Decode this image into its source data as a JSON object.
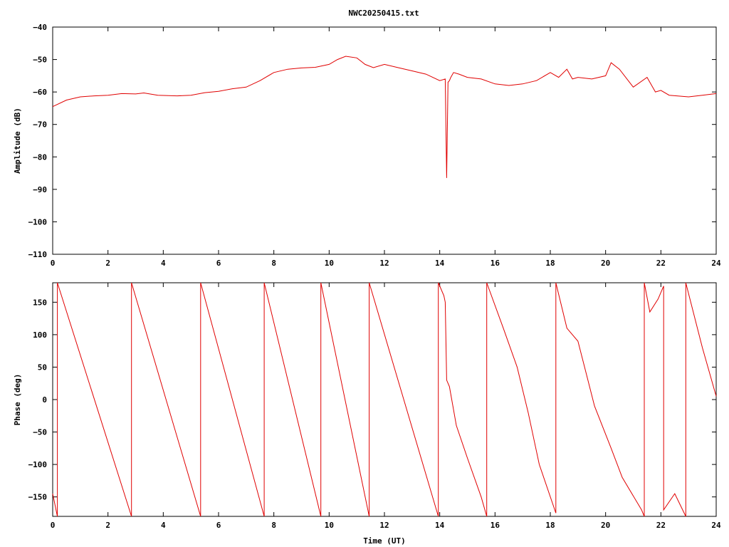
{
  "title": "NWC20250415.txt",
  "chart_data": [
    {
      "type": "line",
      "ylabel": "Amplitude (dB)",
      "xlabel": "",
      "xlim": [
        0,
        24
      ],
      "ylim": [
        -110,
        -40
      ],
      "xticks": [
        0,
        2,
        4,
        6,
        8,
        10,
        12,
        14,
        16,
        18,
        20,
        22,
        24
      ],
      "yticks": [
        -110,
        -100,
        -90,
        -80,
        -70,
        -60,
        -50,
        -40
      ],
      "xtick_labels": [
        "0",
        "2",
        "4",
        "6",
        "8",
        "10",
        "12",
        "14",
        "16",
        "18",
        "20",
        "22",
        "24"
      ],
      "ytick_labels": [
        "−110",
        "−100",
        "−90",
        "−80",
        "−70",
        "−60",
        "−50",
        "−40"
      ],
      "series_color": "#e00000",
      "series": [
        {
          "x": [
            0,
            0.5,
            1,
            1.5,
            2,
            2.5,
            3,
            3.3,
            3.8,
            4.5,
            5,
            5.5,
            6,
            6.5,
            7,
            7.5,
            8,
            8.5,
            9,
            9.5,
            10,
            10.3,
            10.6,
            11,
            11.3,
            11.6,
            12,
            12.5,
            13,
            13.5,
            14,
            14.2,
            14.25,
            14.3,
            14.35,
            14.4,
            14.5,
            14.7,
            15,
            15.5,
            16,
            16.5,
            17,
            17.5,
            18,
            18.3,
            18.6,
            18.8,
            19,
            19.5,
            20,
            20.2,
            20.5,
            21,
            21.5,
            21.8,
            22,
            22.3,
            23,
            23.5,
            24
          ],
          "y": [
            -64.5,
            -62.5,
            -61.5,
            -61.2,
            -61,
            -60.5,
            -60.6,
            -60.3,
            -61,
            -61.2,
            -61,
            -60.2,
            -59.8,
            -59,
            -58.5,
            -56.5,
            -54,
            -53,
            -52.6,
            -52.4,
            -51.5,
            -50,
            -49,
            -49.5,
            -51.5,
            -52.5,
            -51.5,
            -52.5,
            -53.5,
            -54.5,
            -56.5,
            -56,
            -86.5,
            -57,
            -56.5,
            -55.5,
            -54,
            -54.5,
            -55.5,
            -56,
            -57.5,
            -58,
            -57.5,
            -56.5,
            -54,
            -55.5,
            -53,
            -56,
            -55.5,
            -56,
            -55,
            -51,
            -53,
            -58.5,
            -55.5,
            -60,
            -59.5,
            -61,
            -61.5,
            -61,
            -60.5
          ]
        }
      ]
    },
    {
      "type": "line",
      "ylabel": "Phase (deg)",
      "xlabel": "Time (UT)",
      "xlim": [
        0,
        24
      ],
      "ylim": [
        -180,
        180
      ],
      "xticks": [
        0,
        2,
        4,
        6,
        8,
        10,
        12,
        14,
        16,
        18,
        20,
        22,
        24
      ],
      "yticks": [
        -150,
        -100,
        -50,
        0,
        50,
        100,
        150
      ],
      "xtick_labels": [
        "0",
        "2",
        "4",
        "6",
        "8",
        "10",
        "12",
        "14",
        "16",
        "18",
        "20",
        "22",
        "24"
      ],
      "ytick_labels": [
        "−150",
        "−100",
        "−50",
        "0",
        "50",
        "100",
        "150"
      ],
      "series_color": "#e00000",
      "series": [
        {
          "x": [
            0,
            0.17,
            0.17,
            2.85,
            2.85,
            5.35,
            5.35,
            7.65,
            7.65,
            9.7,
            9.7,
            11.45,
            11.45,
            13.95,
            13.95,
            14.15,
            14.2,
            14.25,
            14.35,
            14.6,
            15,
            15.5,
            15.7,
            15.7,
            16.3,
            16.8,
            17.2,
            17.6,
            18.2,
            18.2,
            18.6,
            19,
            19.3,
            19.6,
            20.2,
            20.6,
            21.3,
            21.4,
            21.4,
            21.6,
            21.9,
            22.1,
            22.1,
            22.5,
            22.9,
            22.9,
            23.5,
            24
          ],
          "y": [
            -145,
            -180,
            180,
            -180,
            180,
            -180,
            180,
            -180,
            180,
            -180,
            180,
            -180,
            180,
            -180,
            180,
            160,
            150,
            30,
            20,
            -40,
            -90,
            -150,
            -180,
            180,
            110,
            50,
            -20,
            -100,
            -175,
            180,
            110,
            90,
            40,
            -10,
            -75,
            -120,
            -170,
            -180,
            180,
            135,
            155,
            175,
            -170,
            -145,
            -180,
            180,
            80,
            5
          ]
        }
      ]
    }
  ]
}
